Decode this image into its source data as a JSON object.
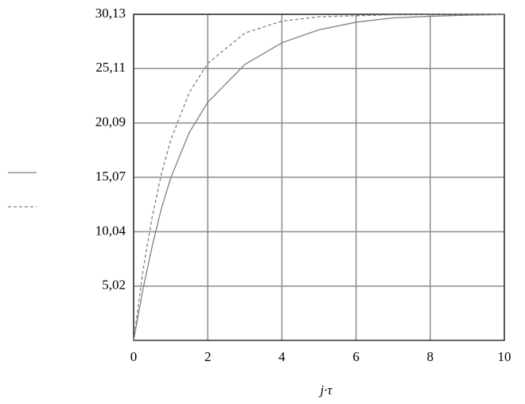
{
  "chart_data": {
    "type": "line",
    "xlabel": "j·τ",
    "x": [
      0,
      0.25,
      0.5,
      0.75,
      1,
      1.5,
      2,
      3,
      4,
      5,
      6,
      7,
      8,
      9,
      10
    ],
    "series": [
      {
        "color": "#808080",
        "line_style": "solid",
        "values": [
          0,
          4.7,
          8.7,
          12.2,
          15.0,
          19.2,
          22.0,
          25.5,
          27.5,
          28.7,
          29.4,
          29.8,
          29.95,
          30.05,
          30.1
        ]
      },
      {
        "color": "#808080",
        "line_style": "dashed",
        "values": [
          0,
          6.4,
          11.4,
          15.4,
          18.5,
          22.9,
          25.6,
          28.4,
          29.5,
          29.9,
          30.0,
          30.09,
          30.11,
          30.12,
          30.13
        ]
      }
    ],
    "xlim": [
      0,
      10
    ],
    "xticks": [
      0,
      2,
      4,
      6,
      8,
      10
    ],
    "ylim": [
      0,
      30.13
    ],
    "yticks": [
      {
        "value": 5.02,
        "label": "5,02"
      },
      {
        "value": 10.04,
        "label": "10,04"
      },
      {
        "value": 15.07,
        "label": "15,07"
      },
      {
        "value": 20.09,
        "label": "20,09"
      },
      {
        "value": 25.11,
        "label": "25,11"
      },
      {
        "value": 30.13,
        "label": "30,13"
      }
    ],
    "grid": true,
    "legend": "left"
  }
}
